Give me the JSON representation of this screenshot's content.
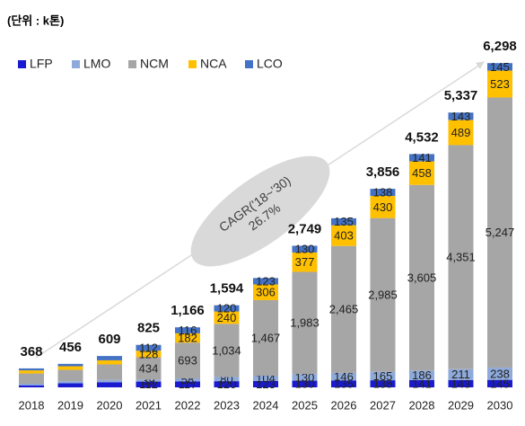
{
  "chart_data": {
    "type": "stacked_bar",
    "unit_label": "(단위 : k톤)",
    "annotation": [
      "CAGR('18~'30)",
      "26.7%"
    ],
    "categories": [
      "2018",
      "2019",
      "2020",
      "2021",
      "2022",
      "2023",
      "2024",
      "2025",
      "2026",
      "2027",
      "2028",
      "2029",
      "2030"
    ],
    "series": [
      {
        "name": "LFP",
        "color": "#1a1ad0",
        "values": [
          40,
          80,
          100,
          112,
          117,
          120,
          123,
          130,
          135,
          138,
          141,
          143,
          145
        ],
        "value_labels": [
          null,
          null,
          null,
          "112",
          "117",
          "120",
          "123",
          "130",
          "135",
          "138",
          "141",
          "143",
          "145"
        ]
      },
      {
        "name": "LMO",
        "color": "#8eaadb",
        "values": [
          30,
          40,
          45,
          39,
          58,
          80,
          104,
          130,
          146,
          165,
          186,
          211,
          238
        ],
        "value_labels": [
          null,
          null,
          null,
          "39",
          "58",
          "80",
          "104",
          "130",
          "146",
          "165",
          "186",
          "211",
          "238"
        ]
      },
      {
        "name": "NCM",
        "color": "#a6a6a6",
        "values": [
          200,
          220,
          300,
          434,
          693,
          1034,
          1467,
          1983,
          2465,
          2985,
          3605,
          4351,
          5247
        ],
        "value_labels": [
          null,
          null,
          null,
          "434",
          "693",
          "1,034",
          "1,467",
          "1,983",
          "2,465",
          "2,985",
          "3,605",
          "4,351",
          "5,247"
        ]
      },
      {
        "name": "NCA",
        "color": "#ffc000",
        "values": [
          60,
          70,
          80,
          128,
          182,
          240,
          306,
          377,
          403,
          430,
          458,
          489,
          523
        ],
        "value_labels": [
          null,
          null,
          null,
          "128",
          "182",
          "240",
          "306",
          "377",
          "403",
          "430",
          "458",
          "489",
          "523"
        ]
      },
      {
        "name": "LCO",
        "color": "#4472c4",
        "values": [
          38,
          46,
          84,
          112,
          116,
          120,
          123,
          130,
          135,
          138,
          141,
          143,
          145
        ],
        "value_labels": [
          null,
          null,
          null,
          "112",
          "116",
          "120",
          "123",
          "130",
          "135",
          "138",
          "141",
          "143",
          "145"
        ]
      }
    ],
    "totals": [
      368,
      456,
      609,
      825,
      1166,
      1594,
      null,
      2749,
      null,
      3856,
      4532,
      5337,
      6298
    ],
    "total_labels": [
      "368",
      "456",
      "609",
      "825",
      "1,166",
      "1,594",
      null,
      "2,749",
      null,
      "3,856",
      "4,532",
      "5,337",
      "6,298"
    ],
    "ylim": [
      0,
      7000
    ]
  }
}
